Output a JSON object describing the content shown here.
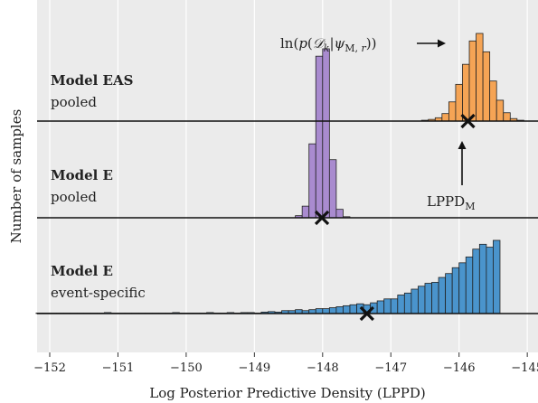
{
  "chart_data": {
    "type": "histogram",
    "xlabel": "Log Posterior Predictive Density (LPPD)",
    "ylabel": "Number of samples",
    "xlim": [
      -152.3,
      -144.85
    ],
    "xticks": [
      -152,
      -151,
      -150,
      -149,
      -148,
      -147,
      -146,
      -145
    ],
    "xtick_labels": [
      "−152",
      "−151",
      "−150",
      "−149",
      "−148",
      "−147",
      "−146",
      "−145"
    ],
    "grid": "vertical",
    "background": "#ebebeb",
    "rows": [
      {
        "title": "Model EAS",
        "subtitle": "pooled",
        "color": "#f5a455",
        "bin_start": -146.55,
        "bin_width": 0.1,
        "counts": [
          1,
          2,
          4,
          9,
          23,
          44,
          68,
          96,
          105,
          83,
          48,
          25,
          10,
          3,
          1
        ],
        "lppd_marker": -145.87
      },
      {
        "title": "Model E",
        "subtitle": "pooled",
        "color": "#a98bcf",
        "bin_start": -148.4,
        "bin_width": 0.1,
        "counts": [
          2,
          11,
          70,
          153,
          160,
          55,
          8,
          1
        ],
        "lppd_marker": -148.01
      },
      {
        "title": "Model E",
        "subtitle": "event-specific",
        "color": "#4a94cc",
        "bin_start": -152.2,
        "bin_width": 0.1,
        "counts": [
          0.5,
          0.5,
          0.5,
          0.5,
          0.5,
          0.5,
          0.5,
          0.5,
          0.5,
          0.5,
          1,
          0.5,
          0.5,
          0.5,
          0.5,
          0.5,
          0.5,
          0.5,
          0.5,
          0.5,
          1,
          0.5,
          0.5,
          0.5,
          0.5,
          1,
          0.5,
          0.5,
          1,
          0.5,
          1,
          1,
          0.5,
          1.5,
          2,
          1.5,
          3,
          3,
          4,
          3,
          4,
          5,
          5,
          6,
          7,
          8,
          9,
          10,
          9,
          11,
          13,
          15,
          15,
          19,
          21,
          25,
          28,
          31,
          32,
          37,
          41,
          47,
          52,
          58,
          66,
          71,
          68,
          75
        ],
        "lppd_marker": -147.35
      }
    ],
    "annotations": {
      "top": "ln(p(D_k|ψ_M,r))",
      "bottom_main": "LPPD",
      "bottom_sub": "M"
    }
  }
}
